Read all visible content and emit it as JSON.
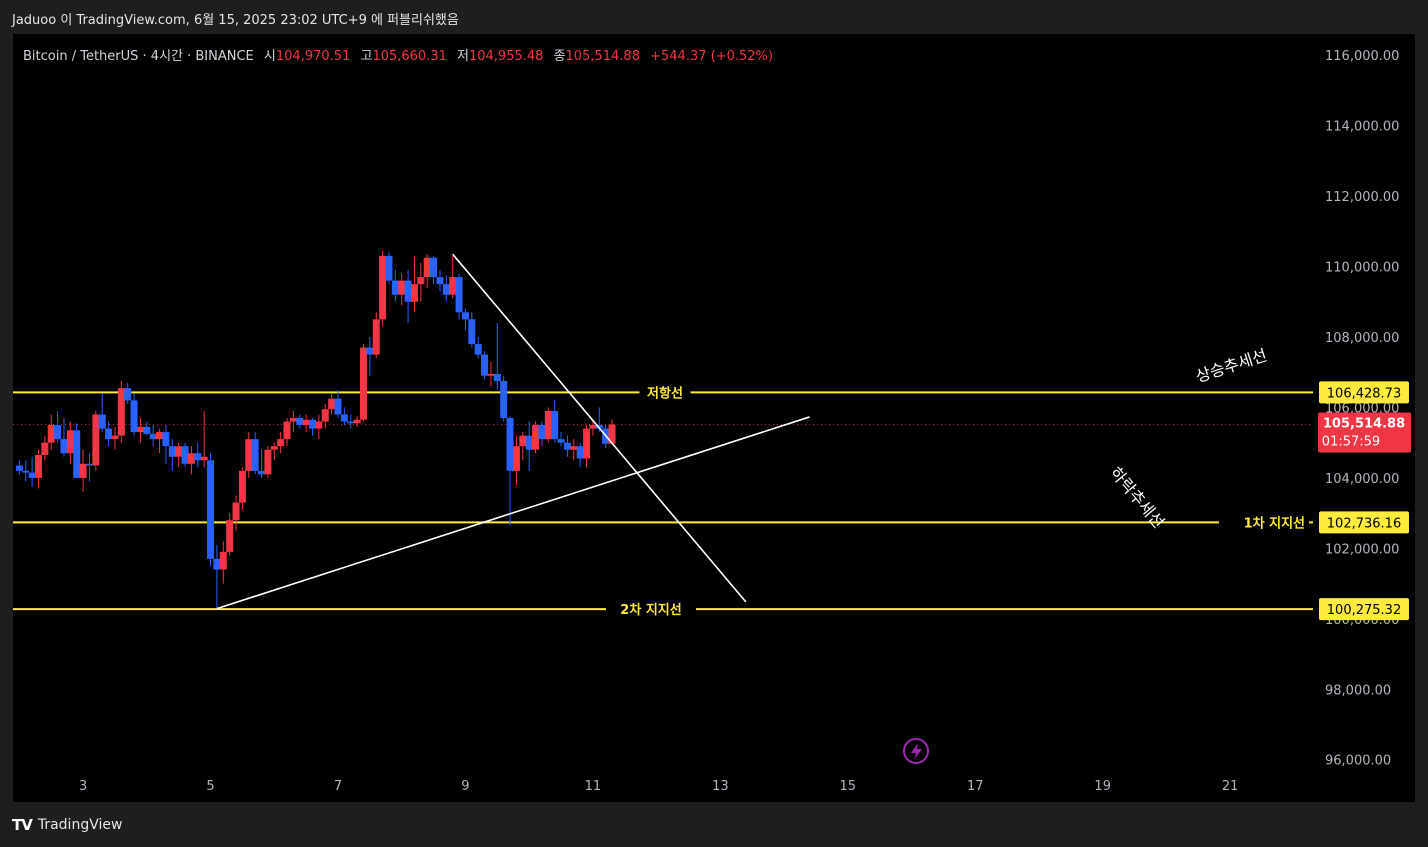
{
  "header": {
    "published": "Jaduoo 이 TradingView.com, 6월 15, 2025 23:02 UTC+9 에 퍼블리쉬했음"
  },
  "legend": {
    "symbol": "Bitcoin / TetherUS · 4시간 · BINANCE",
    "open_label": "시",
    "open": "104,970.51",
    "high_label": "고",
    "high": "105,660.31",
    "low_label": "저",
    "low": "104,955.48",
    "close_label": "종",
    "close": "105,514.88",
    "change": "+544.37 (+0.52%)"
  },
  "footer": {
    "brand": "TradingView"
  },
  "colors": {
    "up": "#f23645",
    "down": "#2962ff",
    "level": "#ffeb3b",
    "trend": "#ffffff",
    "axis_text": "#b2b5be",
    "price_label_bg": "#f23645"
  },
  "chart_data": {
    "type": "candlestick",
    "symbol": "Bitcoin / TetherUS",
    "timeframe": "4시간",
    "exchange": "BINANCE",
    "x_ticks": [
      "3",
      "5",
      "7",
      "9",
      "11",
      "13",
      "15",
      "17",
      "19",
      "21"
    ],
    "y_ticks": [
      "96,000.00",
      "98,000.00",
      "100,000.00",
      "102,000.00",
      "104,000.00",
      "106,000.00",
      "108,000.00",
      "110,000.00",
      "112,000.00",
      "114,000.00",
      "116,000.00"
    ],
    "ylim": [
      94800,
      116600
    ],
    "xlim_days": [
      1.9,
      22.3
    ],
    "candles": [
      {
        "d": 2.0,
        "o": 104350,
        "h": 104500,
        "l": 104100,
        "c": 104200
      },
      {
        "d": 2.1,
        "o": 104200,
        "h": 104500,
        "l": 103900,
        "c": 104150
      },
      {
        "d": 2.2,
        "o": 104150,
        "h": 104600,
        "l": 103750,
        "c": 104000
      },
      {
        "d": 2.3,
        "o": 104000,
        "h": 104800,
        "l": 103700,
        "c": 104650
      },
      {
        "d": 2.4,
        "o": 104650,
        "h": 105200,
        "l": 104500,
        "c": 105000
      },
      {
        "d": 2.5,
        "o": 105000,
        "h": 105800,
        "l": 104800,
        "c": 105500
      },
      {
        "d": 2.6,
        "o": 105500,
        "h": 105900,
        "l": 105000,
        "c": 105100
      },
      {
        "d": 2.7,
        "o": 105100,
        "h": 105700,
        "l": 104600,
        "c": 104700
      },
      {
        "d": 2.8,
        "o": 104700,
        "h": 105600,
        "l": 104400,
        "c": 105350
      },
      {
        "d": 2.9,
        "o": 105350,
        "h": 105550,
        "l": 104000,
        "c": 104000
      },
      {
        "d": 3.0,
        "o": 104000,
        "h": 104800,
        "l": 103600,
        "c": 104400
      },
      {
        "d": 3.1,
        "o": 104400,
        "h": 104700,
        "l": 103900,
        "c": 104350
      },
      {
        "d": 3.2,
        "o": 104350,
        "h": 105900,
        "l": 104200,
        "c": 105800
      },
      {
        "d": 3.3,
        "o": 105800,
        "h": 106400,
        "l": 105300,
        "c": 105400
      },
      {
        "d": 3.4,
        "o": 105400,
        "h": 105600,
        "l": 104900,
        "c": 105100
      },
      {
        "d": 3.5,
        "o": 105100,
        "h": 105450,
        "l": 104800,
        "c": 105200
      },
      {
        "d": 3.6,
        "o": 105200,
        "h": 106750,
        "l": 105000,
        "c": 106550
      },
      {
        "d": 3.7,
        "o": 106550,
        "h": 106700,
        "l": 106100,
        "c": 106200
      },
      {
        "d": 3.8,
        "o": 106200,
        "h": 106400,
        "l": 105200,
        "c": 105300
      },
      {
        "d": 3.9,
        "o": 105300,
        "h": 105700,
        "l": 105000,
        "c": 105450
      },
      {
        "d": 4.0,
        "o": 105450,
        "h": 105600,
        "l": 105200,
        "c": 105250
      },
      {
        "d": 4.1,
        "o": 105250,
        "h": 105500,
        "l": 104900,
        "c": 105100
      },
      {
        "d": 4.2,
        "o": 105100,
        "h": 105400,
        "l": 104700,
        "c": 105300
      },
      {
        "d": 4.3,
        "o": 105300,
        "h": 105500,
        "l": 104400,
        "c": 104900
      },
      {
        "d": 4.4,
        "o": 104900,
        "h": 105100,
        "l": 104200,
        "c": 104600
      },
      {
        "d": 4.5,
        "o": 104600,
        "h": 105000,
        "l": 104300,
        "c": 104900
      },
      {
        "d": 4.6,
        "o": 104900,
        "h": 105000,
        "l": 104300,
        "c": 104400
      },
      {
        "d": 4.7,
        "o": 104400,
        "h": 104900,
        "l": 104100,
        "c": 104700
      },
      {
        "d": 4.8,
        "o": 104700,
        "h": 105000,
        "l": 104300,
        "c": 104500
      },
      {
        "d": 4.9,
        "o": 104500,
        "h": 105900,
        "l": 104300,
        "c": 104600
      },
      {
        "d": 5.0,
        "o": 104500,
        "h": 104700,
        "l": 101500,
        "c": 101700
      },
      {
        "d": 5.1,
        "o": 101700,
        "h": 102100,
        "l": 100300,
        "c": 101400
      },
      {
        "d": 5.2,
        "o": 101400,
        "h": 102200,
        "l": 101000,
        "c": 101900
      },
      {
        "d": 5.3,
        "o": 101900,
        "h": 103000,
        "l": 101800,
        "c": 102800
      },
      {
        "d": 5.4,
        "o": 102800,
        "h": 103500,
        "l": 102500,
        "c": 103300
      },
      {
        "d": 5.5,
        "o": 103300,
        "h": 104300,
        "l": 103100,
        "c": 104200
      },
      {
        "d": 5.6,
        "o": 104200,
        "h": 105300,
        "l": 104000,
        "c": 105100
      },
      {
        "d": 5.7,
        "o": 105100,
        "h": 105300,
        "l": 104100,
        "c": 104200
      },
      {
        "d": 5.8,
        "o": 104200,
        "h": 104800,
        "l": 104000,
        "c": 104100
      },
      {
        "d": 5.9,
        "o": 104100,
        "h": 104900,
        "l": 104000,
        "c": 104800
      },
      {
        "d": 6.0,
        "o": 104800,
        "h": 105000,
        "l": 104500,
        "c": 104900
      },
      {
        "d": 6.1,
        "o": 104900,
        "h": 105300,
        "l": 104700,
        "c": 105100
      },
      {
        "d": 6.2,
        "o": 105100,
        "h": 105700,
        "l": 104900,
        "c": 105600
      },
      {
        "d": 6.3,
        "o": 105600,
        "h": 105900,
        "l": 105300,
        "c": 105700
      },
      {
        "d": 6.4,
        "o": 105700,
        "h": 105800,
        "l": 105400,
        "c": 105500
      },
      {
        "d": 6.5,
        "o": 105500,
        "h": 105800,
        "l": 105300,
        "c": 105650
      },
      {
        "d": 6.6,
        "o": 105650,
        "h": 105700,
        "l": 105200,
        "c": 105400
      },
      {
        "d": 6.7,
        "o": 105400,
        "h": 105800,
        "l": 105100,
        "c": 105600
      },
      {
        "d": 6.8,
        "o": 105600,
        "h": 106100,
        "l": 105400,
        "c": 105950
      },
      {
        "d": 6.9,
        "o": 105950,
        "h": 106400,
        "l": 105800,
        "c": 106250
      },
      {
        "d": 7.0,
        "o": 106250,
        "h": 106500,
        "l": 105700,
        "c": 105800
      },
      {
        "d": 7.1,
        "o": 105800,
        "h": 106000,
        "l": 105500,
        "c": 105600
      },
      {
        "d": 7.2,
        "o": 105600,
        "h": 105800,
        "l": 105400,
        "c": 105550
      },
      {
        "d": 7.3,
        "o": 105550,
        "h": 105750,
        "l": 105450,
        "c": 105650
      },
      {
        "d": 7.4,
        "o": 105650,
        "h": 107800,
        "l": 105600,
        "c": 107700
      },
      {
        "d": 7.5,
        "o": 107700,
        "h": 108000,
        "l": 106900,
        "c": 107500
      },
      {
        "d": 7.6,
        "o": 107500,
        "h": 108700,
        "l": 107400,
        "c": 108500
      },
      {
        "d": 7.7,
        "o": 108500,
        "h": 110450,
        "l": 108300,
        "c": 110300
      },
      {
        "d": 7.8,
        "o": 110300,
        "h": 110400,
        "l": 109500,
        "c": 109600
      },
      {
        "d": 7.9,
        "o": 109600,
        "h": 109900,
        "l": 109000,
        "c": 109200
      },
      {
        "d": 8.0,
        "o": 109200,
        "h": 109800,
        "l": 108900,
        "c": 109600
      },
      {
        "d": 8.1,
        "o": 109600,
        "h": 109900,
        "l": 108400,
        "c": 109000
      },
      {
        "d": 8.2,
        "o": 109000,
        "h": 110300,
        "l": 108700,
        "c": 109500
      },
      {
        "d": 8.3,
        "o": 109500,
        "h": 110100,
        "l": 109000,
        "c": 109700
      },
      {
        "d": 8.4,
        "o": 109700,
        "h": 110350,
        "l": 109400,
        "c": 110250
      },
      {
        "d": 8.5,
        "o": 110250,
        "h": 110300,
        "l": 109500,
        "c": 109700
      },
      {
        "d": 8.6,
        "o": 109700,
        "h": 109900,
        "l": 109300,
        "c": 109500
      },
      {
        "d": 8.7,
        "o": 109500,
        "h": 109750,
        "l": 109000,
        "c": 109200
      },
      {
        "d": 8.8,
        "o": 109200,
        "h": 110300,
        "l": 109100,
        "c": 109700
      },
      {
        "d": 8.9,
        "o": 109700,
        "h": 109800,
        "l": 108500,
        "c": 108700
      },
      {
        "d": 9.0,
        "o": 108700,
        "h": 108800,
        "l": 108200,
        "c": 108500
      },
      {
        "d": 9.1,
        "o": 108500,
        "h": 108700,
        "l": 107700,
        "c": 107800
      },
      {
        "d": 9.2,
        "o": 107800,
        "h": 108000,
        "l": 107400,
        "c": 107500
      },
      {
        "d": 9.3,
        "o": 107500,
        "h": 107600,
        "l": 106800,
        "c": 106900
      },
      {
        "d": 9.4,
        "o": 106900,
        "h": 107300,
        "l": 106600,
        "c": 106950
      },
      {
        "d": 9.5,
        "o": 106950,
        "h": 108400,
        "l": 106500,
        "c": 106750
      },
      {
        "d": 9.6,
        "o": 106750,
        "h": 106900,
        "l": 105600,
        "c": 105700
      },
      {
        "d": 9.7,
        "o": 105700,
        "h": 105750,
        "l": 102650,
        "c": 104200
      },
      {
        "d": 9.8,
        "o": 104200,
        "h": 105200,
        "l": 103800,
        "c": 104900
      },
      {
        "d": 9.9,
        "o": 104900,
        "h": 105300,
        "l": 104500,
        "c": 105200
      },
      {
        "d": 10.0,
        "o": 105200,
        "h": 105600,
        "l": 104200,
        "c": 104800
      },
      {
        "d": 10.1,
        "o": 104800,
        "h": 105600,
        "l": 104700,
        "c": 105500
      },
      {
        "d": 10.2,
        "o": 105500,
        "h": 105600,
        "l": 104900,
        "c": 105100
      },
      {
        "d": 10.3,
        "o": 105100,
        "h": 106000,
        "l": 105000,
        "c": 105900
      },
      {
        "d": 10.4,
        "o": 105900,
        "h": 106200,
        "l": 105000,
        "c": 105100
      },
      {
        "d": 10.5,
        "o": 105100,
        "h": 105300,
        "l": 104900,
        "c": 105000
      },
      {
        "d": 10.6,
        "o": 105000,
        "h": 105200,
        "l": 104600,
        "c": 104800
      },
      {
        "d": 10.7,
        "o": 104800,
        "h": 105100,
        "l": 104500,
        "c": 104900
      },
      {
        "d": 10.8,
        "o": 104900,
        "h": 105000,
        "l": 104300,
        "c": 104550
      },
      {
        "d": 10.9,
        "o": 104550,
        "h": 105500,
        "l": 104300,
        "c": 105400
      },
      {
        "d": 11.0,
        "o": 105400,
        "h": 105650,
        "l": 105200,
        "c": 105500
      },
      {
        "d": 11.1,
        "o": 105500,
        "h": 106000,
        "l": 105300,
        "c": 105400
      },
      {
        "d": 11.2,
        "o": 105400,
        "h": 105500,
        "l": 104850,
        "c": 104970
      },
      {
        "d": 11.3,
        "o": 104970,
        "h": 105660,
        "l": 104955,
        "c": 105515
      }
    ]
  },
  "levels": [
    {
      "name": "저항선",
      "price": 106428.73,
      "price_label": "106,428.73"
    },
    {
      "name": "1차 지지선",
      "price": 102736.16,
      "price_label": "102,736.16"
    },
    {
      "name": "2차 지지선",
      "price": 100275.32,
      "price_label": "100,275.32"
    }
  ],
  "trendlines": [
    {
      "name": "상승추세선",
      "from": {
        "d": 5.1,
        "p": 100290
      },
      "to": {
        "d": 14.4,
        "p": 105730
      }
    },
    {
      "name": "하락추세선",
      "from": {
        "d": 8.8,
        "p": 110350
      },
      "to": {
        "d": 13.4,
        "p": 100480
      }
    }
  ],
  "last_price": {
    "price": 105514.88,
    "label": "105,514.88",
    "countdown": "01:57:59"
  },
  "alert_icon": "lightning-icon"
}
